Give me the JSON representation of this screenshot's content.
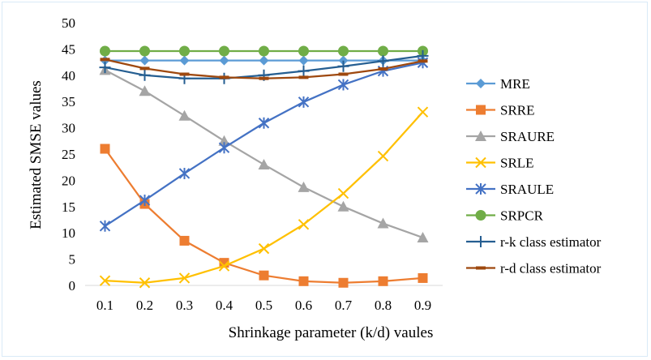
{
  "chart_data": {
    "type": "line",
    "x": [
      0.1,
      0.2,
      0.3,
      0.4,
      0.5,
      0.6,
      0.7,
      0.8,
      0.9
    ],
    "x_tick_labels": [
      "0.1",
      "0.2",
      "0.3",
      "0.4",
      "0.5",
      "0.6",
      "0.7",
      "0.8",
      "0.9"
    ],
    "xlabel": "Shrinkage parameter (k/d) vaules",
    "ylabel": "Estimated SMSE values",
    "ylim": [
      0,
      50
    ],
    "y_ticks": [
      0,
      5,
      10,
      15,
      20,
      25,
      30,
      35,
      40,
      45,
      50
    ],
    "grid": false,
    "legend_position": "right",
    "series": [
      {
        "name": "MRE",
        "color": "#5b9bd5",
        "marker": "diamond",
        "values": [
          42.8,
          42.8,
          42.8,
          42.8,
          42.8,
          42.8,
          42.8,
          42.8,
          42.8
        ]
      },
      {
        "name": "SRRE",
        "color": "#ed7d31",
        "marker": "square",
        "values": [
          26.0,
          15.5,
          8.5,
          4.3,
          1.9,
          0.8,
          0.5,
          0.8,
          1.4
        ]
      },
      {
        "name": "SRAURE",
        "color": "#a5a5a5",
        "marker": "triangle",
        "values": [
          41.0,
          37.0,
          32.3,
          27.5,
          23.0,
          18.7,
          15.0,
          11.8,
          9.1
        ]
      },
      {
        "name": "SRLE",
        "color": "#ffc000",
        "marker": "x",
        "values": [
          0.9,
          0.5,
          1.4,
          3.7,
          7.0,
          11.6,
          17.5,
          24.6,
          33.0
        ]
      },
      {
        "name": "SRAULE",
        "color": "#4472c4",
        "marker": "star",
        "values": [
          11.3,
          16.2,
          21.3,
          26.2,
          30.9,
          34.9,
          38.2,
          40.8,
          42.4
        ]
      },
      {
        "name": "SRPCR",
        "color": "#70ad47",
        "marker": "circle",
        "values": [
          44.6,
          44.6,
          44.6,
          44.6,
          44.6,
          44.6,
          44.6,
          44.6,
          44.6
        ]
      },
      {
        "name": "r-k class estimator",
        "color": "#255e91",
        "marker": "plus",
        "values": [
          41.5,
          40.0,
          39.4,
          39.4,
          40.0,
          40.8,
          41.7,
          42.7,
          43.7
        ]
      },
      {
        "name": "r-d class estimator",
        "color": "#9e480e",
        "marker": "dash",
        "values": [
          43.0,
          41.3,
          40.2,
          39.6,
          39.4,
          39.6,
          40.2,
          41.2,
          42.7
        ]
      }
    ]
  }
}
